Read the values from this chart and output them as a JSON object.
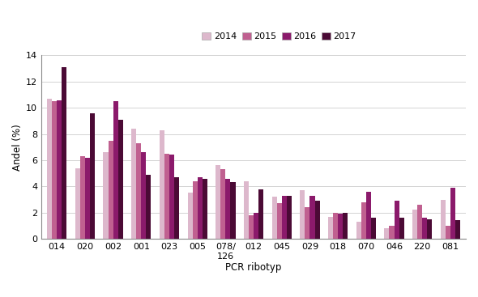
{
  "categories": [
    "014",
    "020",
    "002",
    "001",
    "023",
    "005",
    "078/\n126",
    "012",
    "045",
    "029",
    "018",
    "070",
    "046",
    "220",
    "081"
  ],
  "series": {
    "2014": [
      10.7,
      5.4,
      6.6,
      8.4,
      8.3,
      3.5,
      5.6,
      4.4,
      3.2,
      3.7,
      1.7,
      1.3,
      0.8,
      2.2,
      3.0
    ],
    "2015": [
      10.5,
      6.3,
      7.5,
      7.3,
      6.5,
      4.4,
      5.3,
      1.8,
      2.7,
      2.4,
      2.0,
      2.8,
      1.0,
      2.6,
      1.0
    ],
    "2016": [
      10.6,
      6.2,
      10.5,
      6.6,
      6.4,
      4.7,
      4.6,
      2.0,
      3.3,
      3.3,
      1.9,
      3.6,
      2.9,
      1.6,
      3.9
    ],
    "2017": [
      13.1,
      9.6,
      9.1,
      4.9,
      4.7,
      4.6,
      4.3,
      3.8,
      3.3,
      2.9,
      2.0,
      1.6,
      1.6,
      1.5,
      1.4
    ]
  },
  "colors": {
    "2014": "#ddb8cc",
    "2015": "#c06090",
    "2016": "#8b1a6b",
    "2017": "#4b0a35"
  },
  "ylabel": "Andel (%)",
  "xlabel": "PCR ribotyp",
  "ylim": [
    0,
    14
  ],
  "yticks": [
    0,
    2,
    4,
    6,
    8,
    10,
    12,
    14
  ],
  "legend_labels": [
    "2014",
    "2015",
    "2016",
    "2017"
  ],
  "background_color": "#ffffff"
}
